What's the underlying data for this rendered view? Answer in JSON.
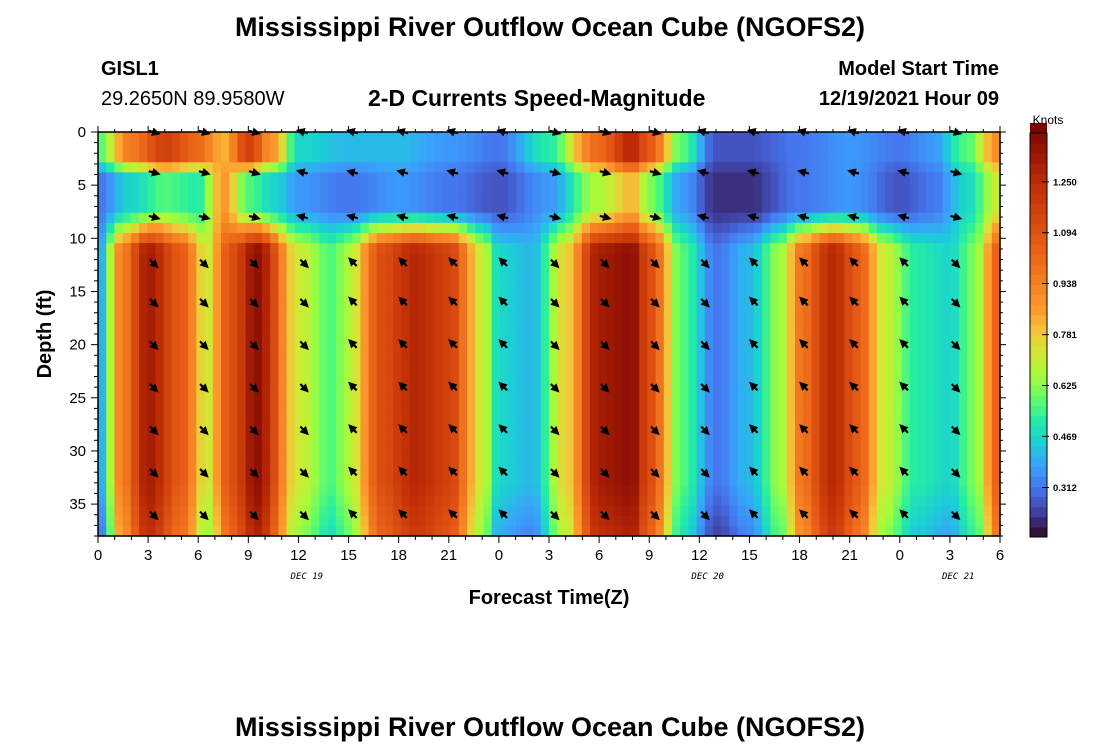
{
  "header": {
    "title": "Mississippi River Outflow Ocean Cube (NGOFS2)",
    "station_id": "GISL1",
    "station_coords": "29.2650N  89.9580W",
    "plot_subtitle": "2-D Currents Speed-Magnitude",
    "model_start_label": "Model Start Time",
    "model_start_value": "12/19/2021 Hour 09"
  },
  "footer": {
    "title": "Mississippi River Outflow Ocean Cube (NGOFS2)"
  },
  "chart_data": {
    "type": "heatmap",
    "title": "2-D Currents Speed-Magnitude",
    "xlabel": "Forecast Time(Z)",
    "ylabel": "Depth (ft)",
    "x_range_hours": [
      0,
      54
    ],
    "x_tick_labels": [
      "0",
      "3",
      "6",
      "9",
      "12",
      "15",
      "18",
      "21",
      "0",
      "3",
      "6",
      "9",
      "12",
      "15",
      "18",
      "21",
      "0",
      "3",
      "6"
    ],
    "x_tick_hours": [
      0,
      3,
      6,
      9,
      12,
      15,
      18,
      21,
      24,
      27,
      30,
      33,
      36,
      39,
      42,
      45,
      48,
      51,
      54
    ],
    "date_labels": [
      {
        "label": "DEC 19",
        "hour": 12.5
      },
      {
        "label": "DEC 20",
        "hour": 36.5
      },
      {
        "label": "DEC 21",
        "hour": 51.5
      }
    ],
    "y_range_ft": [
      0,
      38
    ],
    "y_ticks": [
      0,
      5,
      10,
      15,
      20,
      25,
      30,
      35
    ],
    "colorbar": {
      "label": "Knots",
      "range": [
        0.16,
        1.4
      ],
      "ticks": [
        "1.250",
        "1.094",
        "0.938",
        "0.781",
        "0.625",
        "0.469",
        "0.312"
      ],
      "tick_values": [
        1.25,
        1.094,
        0.938,
        0.781,
        0.625,
        0.469,
        0.312
      ]
    },
    "bottom_layer_speed_by_hour": {
      "hours": [
        0,
        1.5,
        3,
        5,
        6.5,
        8,
        9.5,
        12,
        14,
        15,
        17,
        19,
        21,
        23,
        24,
        26,
        28,
        30,
        32,
        33,
        35,
        37,
        39,
        41,
        42,
        44,
        45.5,
        47,
        49,
        51,
        52.5,
        54
      ],
      "knots": [
        0.35,
        0.95,
        1.3,
        1.05,
        0.7,
        1.1,
        1.35,
        0.7,
        0.55,
        0.65,
        1.1,
        1.25,
        1.15,
        0.7,
        0.45,
        0.4,
        0.75,
        1.3,
        1.35,
        1.1,
        0.55,
        0.3,
        0.4,
        0.65,
        0.95,
        1.25,
        1.05,
        0.7,
        0.5,
        0.45,
        0.6,
        1.05
      ]
    },
    "surface_layer_speed_by_hour": {
      "hours": [
        0,
        2,
        4,
        6,
        7.5,
        9,
        10.5,
        12,
        15,
        18,
        21,
        24,
        27,
        30,
        32,
        33,
        35,
        37,
        39,
        42,
        45,
        48,
        50,
        52,
        54
      ],
      "knots": [
        0.55,
        0.95,
        1.15,
        1.0,
        0.8,
        1.15,
        0.85,
        0.45,
        0.4,
        0.4,
        0.35,
        0.3,
        0.5,
        1.0,
        1.25,
        1.05,
        0.55,
        0.25,
        0.25,
        0.3,
        0.35,
        0.3,
        0.35,
        0.55,
        0.9
      ]
    },
    "middle_layer_speed_by_hour": {
      "hours": [
        0,
        2,
        4,
        6,
        7.5,
        9,
        10.5,
        12,
        15,
        18,
        21,
        24,
        27,
        30,
        32,
        33,
        35,
        37,
        39,
        42,
        45,
        48,
        50,
        52,
        54
      ],
      "knots": [
        0.3,
        0.45,
        0.55,
        0.5,
        0.85,
        0.55,
        0.45,
        0.35,
        0.3,
        0.35,
        0.3,
        0.25,
        0.35,
        0.65,
        0.8,
        0.6,
        0.35,
        0.2,
        0.2,
        0.3,
        0.35,
        0.25,
        0.3,
        0.45,
        0.7
      ]
    },
    "vector_rows_ft": [
      0,
      3.8,
      8,
      12.3,
      16,
      20,
      24,
      28,
      32,
      36
    ],
    "vector_hours": [
      3,
      6,
      9,
      12,
      15,
      18,
      21,
      24,
      27,
      30,
      33,
      36,
      39,
      42,
      45,
      48,
      51
    ],
    "vector_directions_deg": {
      "surface": [
        15,
        15,
        15,
        -165,
        -165,
        -165,
        -165,
        -165,
        15,
        15,
        15,
        -165,
        -165,
        -165,
        -165,
        -165,
        15
      ],
      "bottom": [
        45,
        45,
        45,
        45,
        -135,
        -135,
        -135,
        -135,
        45,
        45,
        45,
        45,
        -135,
        -135,
        -135,
        -135,
        45
      ]
    }
  }
}
